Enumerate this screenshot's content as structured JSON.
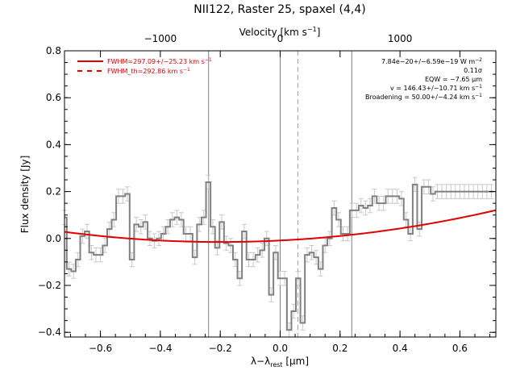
{
  "chart_data": {
    "type": "line",
    "title": "NII122, Raster 25, spaxel (4,4)",
    "xlabel_main": "λ−λ",
    "xlabel_sub": "rest",
    "xlabel_unit": " [μm]",
    "ylabel": "Flux density [Jy]",
    "top_axis_label": "Velocity [km s",
    "top_axis_label_sup": "−1",
    "top_axis_label_end": "]",
    "xlim": [
      -0.72,
      0.72
    ],
    "ylim": [
      -0.42,
      0.8
    ],
    "x_ticks": [
      -0.6,
      -0.4,
      -0.2,
      0.0,
      0.2,
      0.4,
      0.6
    ],
    "x_tick_labels": [
      "−0.6",
      "−0.4",
      "−0.2",
      "0.0",
      "0.2",
      "0.4",
      "0.6"
    ],
    "y_ticks": [
      -0.4,
      -0.2,
      0.0,
      0.2,
      0.4,
      0.6,
      0.8
    ],
    "y_tick_labels": [
      "−0.4",
      "−0.2",
      "0.0",
      "0.2",
      "0.4",
      "0.6",
      "0.8"
    ],
    "top_ticks": [
      -0.4,
      0.0,
      0.4
    ],
    "top_tick_labels": [
      "−1000",
      "0",
      "1000"
    ],
    "vertical_lines_solid": [
      -0.239,
      0.0,
      0.239
    ],
    "vertical_line_dashed": 0.059,
    "legend": [
      {
        "label": "FWHM=297.09+/−25.23 km s",
        "sup": "−1",
        "style": "solid",
        "color": "#e00000"
      },
      {
        "label": "FWHM_th=292.86 km s",
        "sup": "−1",
        "style": "dashed",
        "color": "#e00000"
      }
    ],
    "annotations": [
      {
        "text": "7.84e−20+/−6.59e−19 W m",
        "sup": "−2"
      },
      {
        "text": "0.11σ",
        "sup": ""
      },
      {
        "text": "EQW = −7.65 μm",
        "sup": ""
      },
      {
        "text": "v = 146.43+/−10.71 km s",
        "sup": "−1"
      },
      {
        "text": "Broadening = 50.00+/−4.24 km s",
        "sup": "−1"
      }
    ],
    "series": [
      {
        "name": "data",
        "color": "#808080",
        "style": "step",
        "x": [
          -0.72,
          -0.705,
          -0.69,
          -0.675,
          -0.66,
          -0.645,
          -0.63,
          -0.615,
          -0.6,
          -0.585,
          -0.57,
          -0.555,
          -0.54,
          -0.525,
          -0.51,
          -0.495,
          -0.48,
          -0.465,
          -0.45,
          -0.435,
          -0.42,
          -0.405,
          -0.39,
          -0.375,
          -0.36,
          -0.345,
          -0.33,
          -0.315,
          -0.3,
          -0.285,
          -0.27,
          -0.255,
          -0.24,
          -0.225,
          -0.21,
          -0.195,
          -0.18,
          -0.165,
          -0.15,
          -0.135,
          -0.12,
          -0.105,
          -0.09,
          -0.075,
          -0.06,
          -0.045,
          -0.03,
          -0.015,
          0.0,
          0.015,
          0.03,
          0.045,
          0.06,
          0.075,
          0.09,
          0.105,
          0.12,
          0.135,
          0.15,
          0.165,
          0.18,
          0.195,
          0.21,
          0.225,
          0.24,
          0.255,
          0.27,
          0.285,
          0.3,
          0.315,
          0.33,
          0.345,
          0.36,
          0.375,
          0.39,
          0.405,
          0.42,
          0.435,
          0.45,
          0.465,
          0.48,
          0.495,
          0.51,
          0.525,
          0.54,
          0.555,
          0.57,
          0.585,
          0.6,
          0.615,
          0.63,
          0.645,
          0.66,
          0.675,
          0.69,
          0.705
        ],
        "y": [
          0.09,
          -0.13,
          -0.14,
          -0.09,
          0.01,
          0.03,
          -0.06,
          -0.07,
          -0.07,
          -0.03,
          0.04,
          0.08,
          0.18,
          0.18,
          0.19,
          -0.09,
          0.06,
          0.05,
          0.07,
          0.0,
          -0.01,
          0.0,
          0.02,
          0.05,
          0.08,
          0.09,
          0.08,
          0.02,
          0.02,
          -0.08,
          0.06,
          0.09,
          0.24,
          0.05,
          -0.04,
          0.07,
          -0.02,
          -0.03,
          -0.09,
          -0.17,
          0.03,
          -0.09,
          -0.09,
          -0.07,
          -0.05,
          0.0,
          -0.24,
          -0.06,
          -0.17,
          -0.17,
          -0.39,
          -0.31,
          -0.17,
          -0.36,
          -0.07,
          -0.06,
          -0.08,
          -0.13,
          -0.03,
          0.0,
          0.13,
          0.08,
          0.02,
          0.02,
          0.12,
          0.12,
          0.14,
          0.13,
          0.14,
          0.18,
          0.15,
          0.15,
          0.18,
          0.18,
          0.18,
          0.17,
          0.08,
          0.02,
          0.23,
          0.04,
          0.22,
          0.22,
          0.19,
          0.2,
          0.2,
          0.2,
          0.2,
          0.2,
          0.2,
          0.2,
          0.2,
          0.2,
          0.2,
          0.2,
          0.2,
          0.2
        ],
        "err": 0.03
      },
      {
        "name": "fit",
        "color": "#e00000",
        "style": "line",
        "model": "quadratic",
        "x_min": -0.2,
        "y_min": -0.015,
        "curvature": 0.16
      }
    ]
  }
}
